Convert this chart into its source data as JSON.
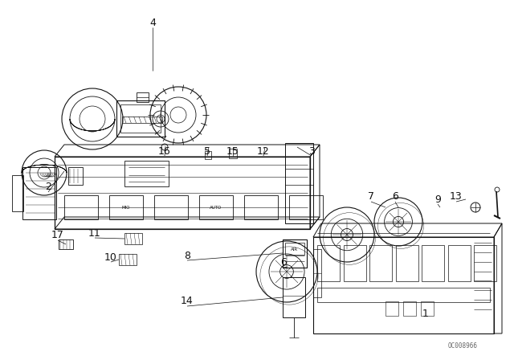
{
  "background_color": "#ffffff",
  "line_color": "#111111",
  "label_color": "#111111",
  "watermark": "OC008966",
  "fig_width": 6.4,
  "fig_height": 4.48,
  "dpi": 100,
  "labels": [
    [
      "4",
      190,
      32
    ],
    [
      "2",
      72,
      238
    ],
    [
      "16",
      208,
      193
    ],
    [
      "5",
      264,
      193
    ],
    [
      "15",
      295,
      193
    ],
    [
      "12",
      330,
      193
    ],
    [
      "3",
      390,
      193
    ],
    [
      "7",
      462,
      248
    ],
    [
      "6",
      490,
      248
    ],
    [
      "9",
      548,
      248
    ],
    [
      "13",
      568,
      248
    ],
    [
      "6",
      355,
      330
    ],
    [
      "8",
      235,
      323
    ],
    [
      "14",
      235,
      378
    ],
    [
      "17",
      78,
      295
    ],
    [
      "11",
      120,
      295
    ],
    [
      "10",
      140,
      323
    ],
    [
      "1",
      530,
      390
    ]
  ]
}
